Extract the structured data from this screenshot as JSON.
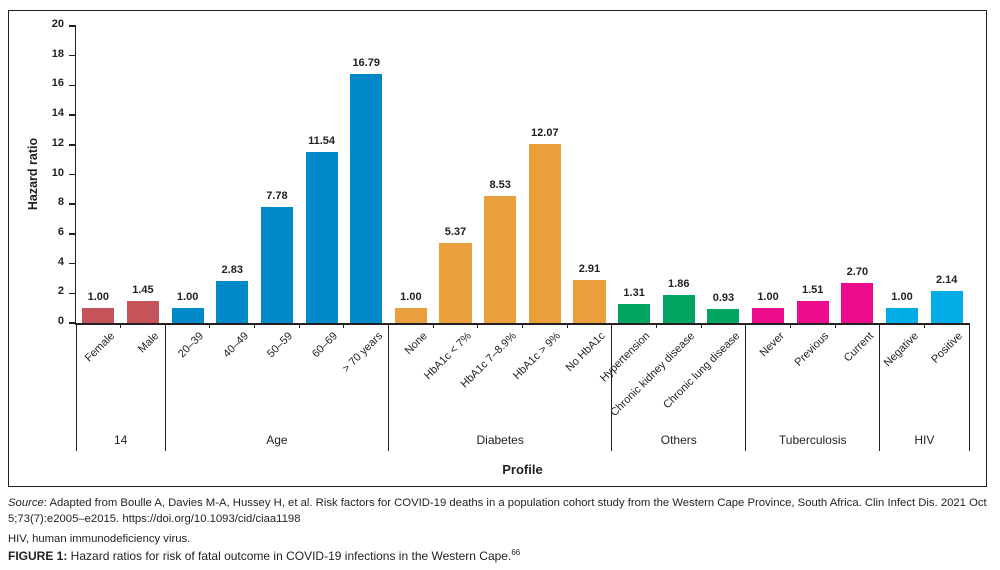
{
  "chart_data": {
    "type": "bar",
    "title": "",
    "xlabel": "Profile",
    "ylabel": "Hazard ratio",
    "ylim": [
      0,
      20
    ],
    "ytick_step": 2,
    "grid": false,
    "legend": "none",
    "groups": [
      {
        "label": "14",
        "color": "#C5545A",
        "bars": [
          {
            "category": "Female",
            "value": 1.0,
            "value_label": "1.00"
          },
          {
            "category": "Male",
            "value": 1.45,
            "value_label": "1.45"
          }
        ]
      },
      {
        "label": "Age",
        "color": "#0089C8",
        "bars": [
          {
            "category": "20–39",
            "value": 1.0,
            "value_label": "1.00"
          },
          {
            "category": "40–49",
            "value": 2.83,
            "value_label": "2.83"
          },
          {
            "category": "50–59",
            "value": 7.78,
            "value_label": "7.78"
          },
          {
            "category": "60–69",
            "value": 11.54,
            "value_label": "11.54"
          },
          {
            "category": "> 70 years",
            "value": 16.79,
            "value_label": "16.79"
          }
        ]
      },
      {
        "label": "Diabetes",
        "color": "#E9A03C",
        "bars": [
          {
            "category": "None",
            "value": 1.0,
            "value_label": "1.00"
          },
          {
            "category": "HbA1c < 7%",
            "value": 5.37,
            "value_label": "5.37"
          },
          {
            "category": "HbA1c 7–8.9%",
            "value": 8.53,
            "value_label": "8.53"
          },
          {
            "category": "HbA1c > 9%",
            "value": 12.07,
            "value_label": "12.07"
          },
          {
            "category": "No HbA1c",
            "value": 2.91,
            "value_label": "2.91"
          }
        ]
      },
      {
        "label": "Others",
        "color": "#00A562",
        "bars": [
          {
            "category": "Hypertension",
            "value": 1.31,
            "value_label": "1.31"
          },
          {
            "category": "Chronic kidney disease",
            "value": 1.86,
            "value_label": "1.86"
          },
          {
            "category": "Chronic lung disease",
            "value": 0.93,
            "value_label": "0.93"
          }
        ]
      },
      {
        "label": "Tuberculosis",
        "color": "#EC0D8D",
        "bars": [
          {
            "category": "Never",
            "value": 1.0,
            "value_label": "1.00"
          },
          {
            "category": "Previous",
            "value": 1.51,
            "value_label": "1.51"
          },
          {
            "category": "Current",
            "value": 2.7,
            "value_label": "2.70"
          }
        ]
      },
      {
        "label": "HIV",
        "color": "#00ADE5",
        "bars": [
          {
            "category": "Negative",
            "value": 1.0,
            "value_label": "1.00"
          },
          {
            "category": "Positive",
            "value": 2.14,
            "value_label": "2.14"
          }
        ]
      }
    ]
  },
  "footer": {
    "source_label": "Source",
    "source_text": ": Adapted from Boulle A, Davies M-A, Hussey H, et al. Risk factors for COVID-19 deaths in a population cohort study from the Western Cape Province, South Africa. Clin Infect Dis. 2021 Oct 5;73(7):e2005–e2015. https://doi.org/10.1093/cid/ciaa1198",
    "abbreviation_note": "HIV, human immunodeficiency virus.",
    "figure_label": "FIGURE 1:",
    "figure_caption": " Hazard ratios for risk of fatal outcome in COVID-19 infections in the Western Cape.",
    "figure_ref": "66"
  }
}
